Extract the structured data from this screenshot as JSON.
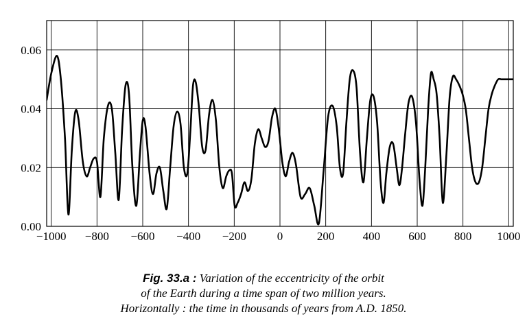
{
  "chart_data": {
    "type": "line",
    "title": "",
    "xlabel": "",
    "ylabel": "",
    "xlim": [
      -1020,
      1020
    ],
    "ylim": [
      0,
      0.07
    ],
    "grid": true,
    "x_ticks": [
      -1000,
      -800,
      -600,
      -400,
      -200,
      0,
      200,
      400,
      600,
      800,
      1000
    ],
    "x_tick_labels": [
      "−1000",
      "−800",
      "−600",
      "−400",
      "−200",
      "0",
      "200",
      "400",
      "600",
      "800",
      "1000"
    ],
    "y_ticks": [
      0,
      0.02,
      0.04,
      0.06
    ],
    "y_tick_labels": [
      "0.00",
      "0.02",
      "0.04",
      "0.06"
    ],
    "series": [
      {
        "color": "#000000",
        "x": [
          -1020,
          -1000,
          -975,
          -958,
          -940,
          -925,
          -910,
          -895,
          -880,
          -862,
          -845,
          -830,
          -815,
          -800,
          -785,
          -770,
          -752,
          -735,
          -720,
          -705,
          -690,
          -675,
          -660,
          -645,
          -628,
          -612,
          -600,
          -588,
          -570,
          -555,
          -540,
          -525,
          -510,
          -495,
          -480,
          -465,
          -450,
          -435,
          -420,
          -405,
          -392,
          -380,
          -368,
          -355,
          -340,
          -325,
          -310,
          -295,
          -280,
          -265,
          -250,
          -235,
          -222,
          -210,
          -198,
          -185,
          -170,
          -155,
          -140,
          -125,
          -110,
          -95,
          -80,
          -65,
          -50,
          -35,
          -20,
          -5,
          10,
          25,
          40,
          55,
          70,
          90,
          110,
          130,
          150,
          170,
          190,
          210,
          230,
          248,
          262,
          276,
          290,
          305,
          320,
          335,
          350,
          365,
          380,
          395,
          410,
          425,
          440,
          453,
          465,
          480,
          495,
          510,
          522,
          534,
          548,
          562,
          578,
          595,
          610,
          623,
          635,
          648,
          660,
          672,
          685,
          698,
          712,
          728,
          742,
          756,
          770,
          784,
          798,
          812,
          826,
          840,
          855,
          870,
          884,
          898,
          912,
          926,
          940,
          954,
          968,
          982,
          996,
          1020
        ],
        "values": [
          0.043,
          0.052,
          0.058,
          0.05,
          0.03,
          0.004,
          0.026,
          0.039,
          0.036,
          0.022,
          0.017,
          0.02,
          0.023,
          0.022,
          0.01,
          0.03,
          0.041,
          0.04,
          0.025,
          0.009,
          0.033,
          0.048,
          0.045,
          0.02,
          0.007,
          0.025,
          0.036,
          0.034,
          0.018,
          0.011,
          0.018,
          0.02,
          0.012,
          0.006,
          0.02,
          0.034,
          0.039,
          0.035,
          0.02,
          0.018,
          0.032,
          0.048,
          0.049,
          0.041,
          0.027,
          0.026,
          0.038,
          0.043,
          0.036,
          0.02,
          0.013,
          0.017,
          0.019,
          0.018,
          0.007,
          0.008,
          0.011,
          0.015,
          0.012,
          0.016,
          0.028,
          0.033,
          0.03,
          0.027,
          0.029,
          0.037,
          0.04,
          0.033,
          0.022,
          0.017,
          0.022,
          0.025,
          0.021,
          0.01,
          0.011,
          0.013,
          0.007,
          0.001,
          0.018,
          0.037,
          0.041,
          0.034,
          0.02,
          0.018,
          0.035,
          0.05,
          0.053,
          0.047,
          0.025,
          0.015,
          0.03,
          0.043,
          0.044,
          0.035,
          0.015,
          0.008,
          0.018,
          0.027,
          0.028,
          0.02,
          0.014,
          0.02,
          0.032,
          0.042,
          0.044,
          0.035,
          0.016,
          0.007,
          0.02,
          0.04,
          0.052,
          0.05,
          0.045,
          0.03,
          0.008,
          0.025,
          0.044,
          0.051,
          0.05,
          0.048,
          0.045,
          0.04,
          0.03,
          0.02,
          0.015,
          0.015,
          0.02,
          0.03,
          0.04,
          0.045,
          0.048,
          0.05,
          0.05,
          0.05,
          0.05,
          0.05
        ]
      }
    ]
  },
  "caption": {
    "bold": "Fig. 33.a :",
    "line1": "Variation of the eccentricity of the orbit",
    "line2": "of the Earth during a time span of two million years.",
    "line3": "Horizontally : the time in thousands of years from A.D. 1850."
  }
}
